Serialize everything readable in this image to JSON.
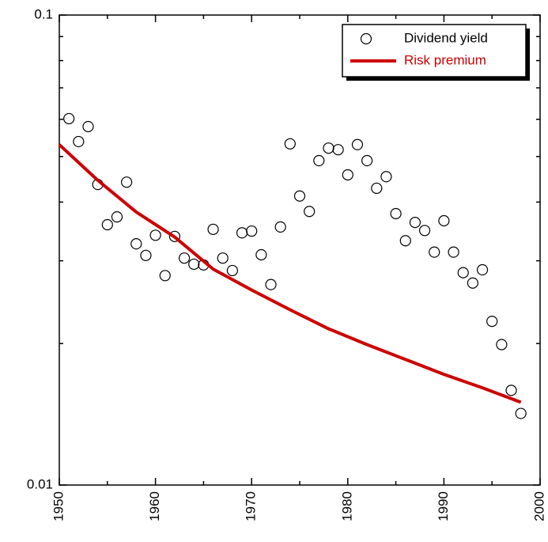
{
  "chart_data": {
    "type": "scatter",
    "yscale": "log",
    "xlim": [
      1950,
      2000
    ],
    "xticks": [
      1950,
      1960,
      1970,
      1980,
      1990,
      2000
    ],
    "xminorticks": [
      1955,
      1965,
      1975,
      1985,
      1995
    ],
    "ylim": [
      0.01,
      0.1
    ],
    "yticks": [
      0.01,
      0.1
    ],
    "yminorticks": [
      0.02,
      0.03,
      0.04,
      0.05,
      0.06,
      0.07,
      0.08,
      0.09
    ],
    "legend": "top-right",
    "series": [
      {
        "name": "Dividend yield",
        "type": "scatter",
        "color": "#000000",
        "x": [
          1951,
          1952,
          1953,
          1954,
          1955,
          1956,
          1957,
          1958,
          1959,
          1960,
          1961,
          1962,
          1963,
          1964,
          1965,
          1966,
          1967,
          1968,
          1969,
          1970,
          1971,
          1972,
          1973,
          1974,
          1975,
          1976,
          1977,
          1978,
          1979,
          1980,
          1981,
          1982,
          1983,
          1984,
          1985,
          1986,
          1987,
          1988,
          1989,
          1990,
          1991,
          1992,
          1993,
          1994,
          1995,
          1996,
          1997,
          1998
        ],
        "values": [
          0.0602,
          0.0538,
          0.0579,
          0.0436,
          0.0358,
          0.0372,
          0.0441,
          0.0326,
          0.0308,
          0.034,
          0.0279,
          0.0338,
          0.0304,
          0.0295,
          0.0294,
          0.035,
          0.0304,
          0.0286,
          0.0344,
          0.0347,
          0.0309,
          0.0267,
          0.0354,
          0.0532,
          0.0412,
          0.0382,
          0.049,
          0.0521,
          0.0517,
          0.0457,
          0.053,
          0.049,
          0.0428,
          0.0453,
          0.0378,
          0.0331,
          0.0362,
          0.0348,
          0.0313,
          0.0365,
          0.0313,
          0.0283,
          0.0269,
          0.0287,
          0.0223,
          0.0199,
          0.0159,
          0.0142
        ]
      },
      {
        "name": "Risk premium",
        "type": "line",
        "color": "#cc0000",
        "x": [
          1950,
          1954,
          1958,
          1962,
          1966,
          1970,
          1974,
          1978,
          1982,
          1986,
          1990,
          1994,
          1998
        ],
        "values": [
          0.053,
          0.0445,
          0.0381,
          0.0337,
          0.0288,
          0.026,
          0.0236,
          0.0215,
          0.0199,
          0.0185,
          0.0172,
          0.0161,
          0.015
        ]
      }
    ]
  }
}
